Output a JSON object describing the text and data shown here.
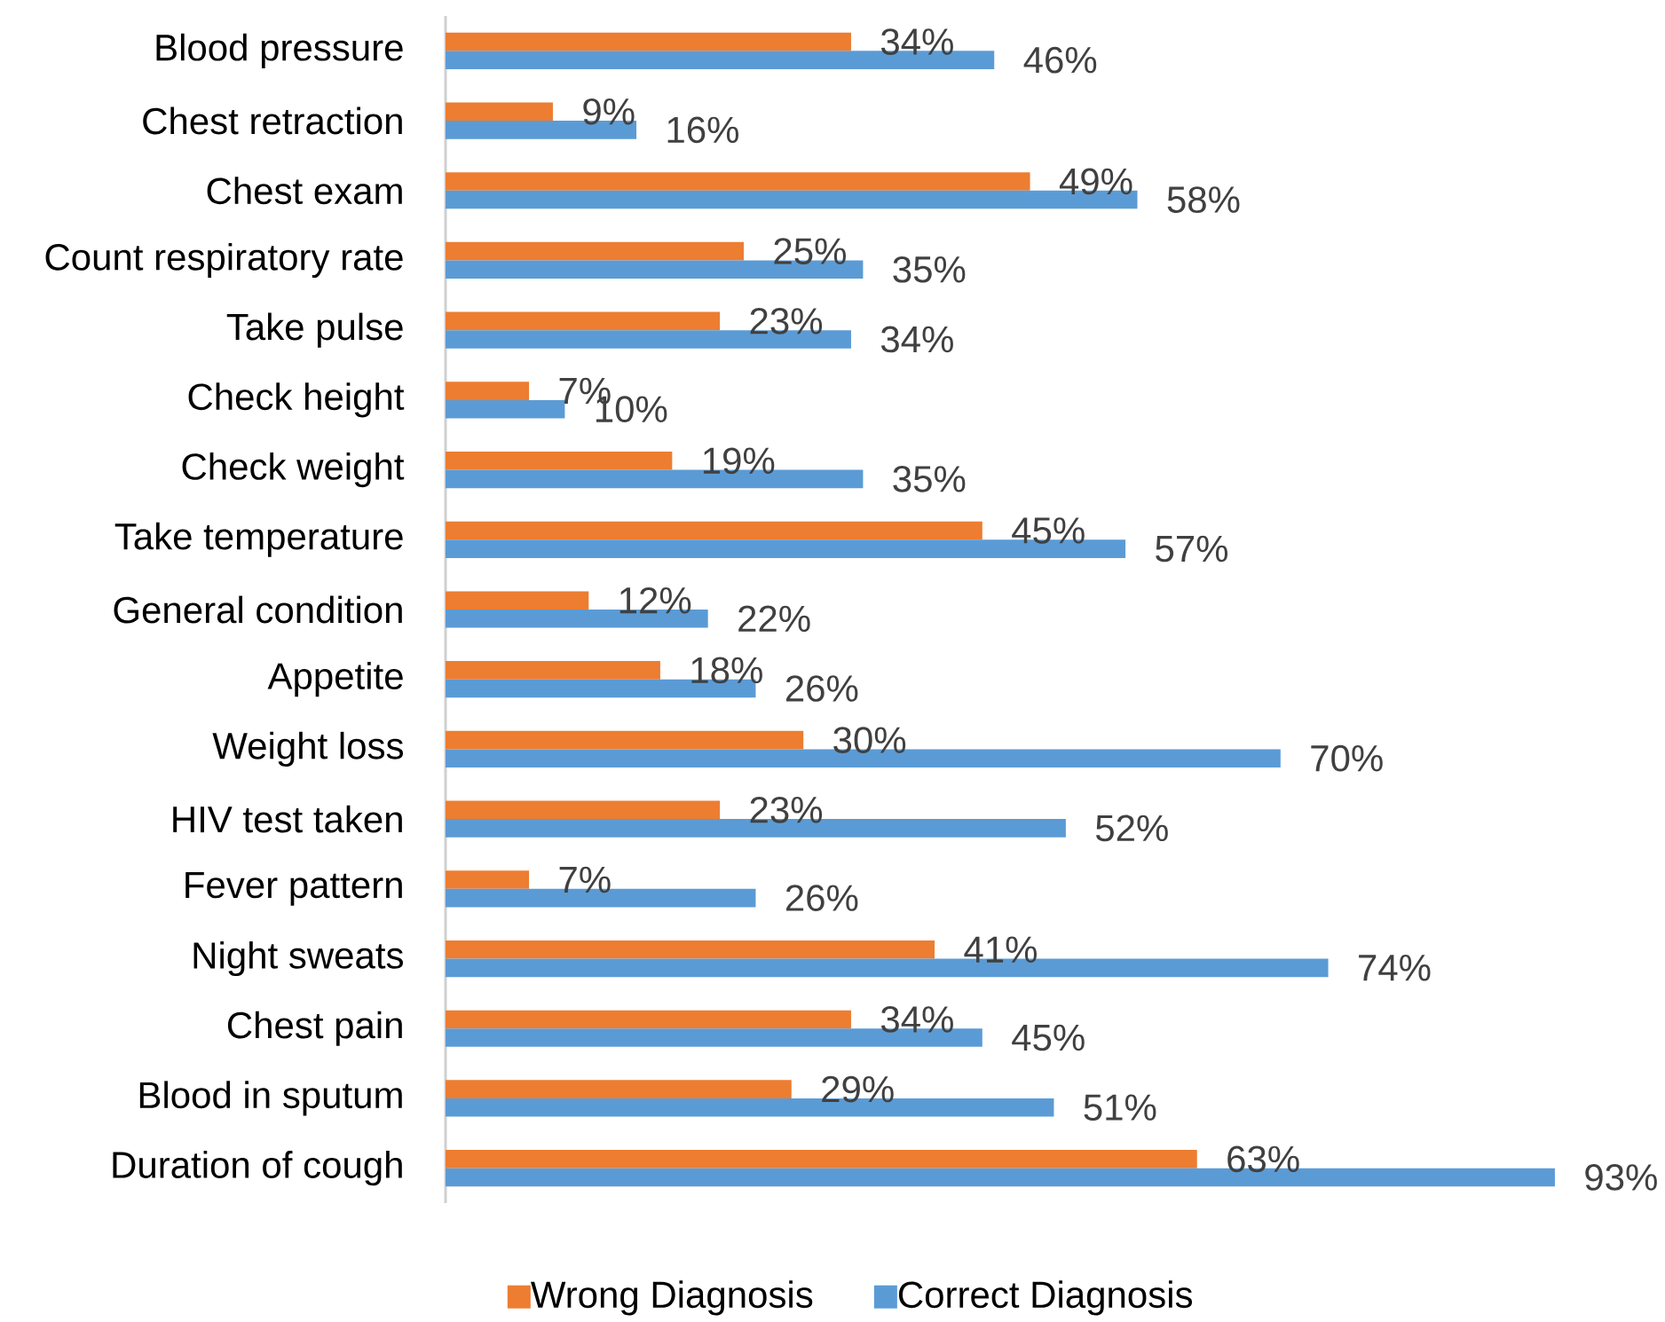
{
  "chart_data": {
    "type": "bar",
    "orientation": "horizontal",
    "legend": "bottom",
    "categories": [
      "Blood pressure",
      "Chest retraction",
      "Chest exam",
      "Count respiratory rate",
      "Take pulse",
      "Check height",
      "Check weight",
      "Take temperature",
      "General condition",
      "Appetite",
      "Weight loss",
      "HIV test taken",
      "Fever pattern",
      "Night sweats",
      "Chest pain",
      "Blood in sputum",
      "Duration of cough"
    ],
    "series": [
      {
        "name": "Wrong Diagnosis",
        "color": "#ed7d31",
        "values": [
          34,
          9,
          49,
          25,
          23,
          7,
          19,
          45,
          12,
          18,
          30,
          23,
          7,
          41,
          34,
          29,
          63
        ],
        "value_labels": [
          "34%",
          "9%",
          "49%",
          "25%",
          "23%",
          "7%",
          "19%",
          "45%",
          "12%",
          "18%",
          "30%",
          "23%",
          "7%",
          "41%",
          "34%",
          "29%",
          "63%"
        ]
      },
      {
        "name": "Correct Diagnosis",
        "color": "#5b9bd5",
        "values": [
          46,
          16,
          58,
          35,
          34,
          10,
          35,
          57,
          22,
          26,
          70,
          52,
          26,
          74,
          45,
          51,
          93
        ],
        "value_labels": [
          "46%",
          "16%",
          "58%",
          "35%",
          "34%",
          "10%",
          "35%",
          "57%",
          "22%",
          "26%",
          "70%",
          "52%",
          "26%",
          "74%",
          "45%",
          "51%",
          "93%"
        ]
      }
    ]
  }
}
